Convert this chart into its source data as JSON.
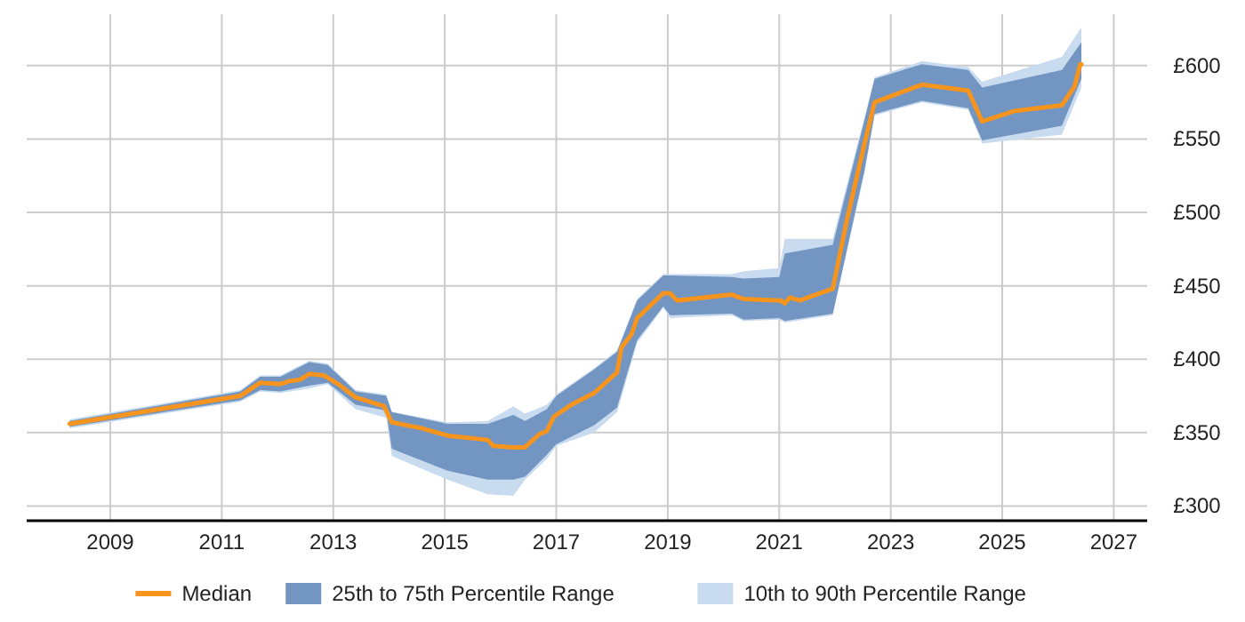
{
  "chart_data": {
    "type": "line",
    "xlim": [
      2007.5,
      2027.6
    ],
    "ylim": [
      290,
      635
    ],
    "xticks": [
      2009,
      2011,
      2013,
      2015,
      2017,
      2019,
      2021,
      2023,
      2025,
      2027
    ],
    "yticks": [
      {
        "value": 300,
        "label": "£300"
      },
      {
        "value": 350,
        "label": "£350"
      },
      {
        "value": 400,
        "label": "£400"
      },
      {
        "value": 450,
        "label": "£450"
      },
      {
        "value": 500,
        "label": "£500"
      },
      {
        "value": 550,
        "label": "£550"
      },
      {
        "value": 600,
        "label": "£600"
      }
    ],
    "grid": true,
    "legend": "bottom",
    "series": [
      {
        "name": "10th to 90th Percentile Range",
        "type": "area",
        "color": "#c9dbee",
        "x": [
          2008.27,
          2011.33,
          2011.69,
          2012.05,
          2012.57,
          2012.9,
          2013.4,
          2013.95,
          2014.05,
          2015.05,
          2015.77,
          2016.23,
          2016.44,
          2016.83,
          2017.0,
          2017.68,
          2018.09,
          2018.45,
          2018.92,
          2019.04,
          2020.15,
          2020.36,
          2021.0,
          2021.1,
          2021.96,
          2022.53,
          2022.71,
          2023.56,
          2024.39,
          2024.64,
          2026.07,
          2026.42
        ],
        "values": [
          null,
          null,
          null,
          null,
          null,
          null,
          null,
          null,
          null,
          null,
          null,
          null,
          null,
          null,
          null,
          null,
          null,
          null,
          null,
          null,
          null,
          null,
          null,
          null,
          null,
          null,
          null,
          null,
          null,
          null,
          null,
          null
        ],
        "lower": [
          353,
          371,
          378,
          377,
          380,
          383,
          366,
          360,
          334,
          318,
          308,
          307,
          318,
          332,
          341,
          350,
          364,
          411,
          435,
          428,
          430,
          426,
          427,
          425,
          430,
          527,
          566,
          575,
          570,
          547,
          553,
          585
        ],
        "upper": [
          359,
          379,
          389,
          389,
          399,
          397,
          379,
          376,
          364,
          357,
          358,
          368,
          363,
          369,
          376,
          394,
          406,
          441,
          458,
          458,
          458,
          460,
          462,
          482,
          482,
          565,
          592,
          603,
          599,
          589,
          606,
          626
        ]
      },
      {
        "name": "25th to 75th Percentile Range",
        "type": "area",
        "color": "#7395c2",
        "x": [
          2008.27,
          2011.33,
          2011.69,
          2012.05,
          2012.57,
          2012.9,
          2013.4,
          2013.95,
          2014.05,
          2015.05,
          2015.77,
          2016.23,
          2016.44,
          2016.83,
          2017.0,
          2017.68,
          2018.09,
          2018.45,
          2018.92,
          2019.04,
          2020.15,
          2020.36,
          2021.0,
          2021.1,
          2021.96,
          2022.53,
          2022.71,
          2023.56,
          2024.39,
          2024.64,
          2026.07,
          2026.42
        ],
        "values": [
          null,
          null,
          null,
          null,
          null,
          null,
          null,
          null,
          null,
          null,
          null,
          null,
          null,
          null,
          null,
          null,
          null,
          null,
          null,
          null,
          null,
          null,
          null,
          null,
          null,
          null,
          null,
          null,
          null,
          null,
          null,
          null
        ],
        "lower": [
          354,
          372,
          379,
          378,
          382,
          384,
          369,
          365,
          339,
          324,
          318,
          318,
          320,
          335,
          342,
          355,
          367,
          413,
          436,
          430,
          431,
          427,
          428,
          426,
          431,
          529,
          567,
          576,
          571,
          549,
          559,
          591
        ],
        "upper": [
          358,
          378,
          388,
          388,
          398,
          396,
          378,
          375,
          364,
          356,
          356,
          362,
          358,
          366,
          375,
          393,
          405,
          440,
          457,
          457,
          456,
          455,
          456,
          472,
          478,
          563,
          591,
          601,
          597,
          585,
          597,
          616
        ]
      },
      {
        "name": "Median",
        "color": "#f7941d",
        "x": [
          2008.27,
          2011.33,
          2011.69,
          2012.05,
          2012.2,
          2012.4,
          2012.57,
          2012.83,
          2013.09,
          2013.4,
          2013.91,
          2014.05,
          2014.58,
          2015.05,
          2015.77,
          2015.87,
          2016.23,
          2016.44,
          2016.7,
          2016.83,
          2016.96,
          2017.27,
          2017.68,
          2018.09,
          2018.17,
          2018.35,
          2018.45,
          2018.92,
          2019.04,
          2019.17,
          2020.15,
          2020.36,
          2021.03,
          2021.1,
          2021.19,
          2021.37,
          2021.96,
          2022.22,
          2022.53,
          2022.71,
          2023.2,
          2023.56,
          2024.39,
          2024.64,
          2025.21,
          2026.07,
          2026.3,
          2026.4,
          2026.42
        ],
        "values": [
          356,
          375,
          384,
          383,
          385,
          386,
          390,
          389,
          383,
          374,
          368,
          357,
          353,
          348,
          345,
          341,
          340,
          340,
          349,
          351,
          361,
          369,
          377,
          391,
          408,
          417,
          428,
          445,
          445,
          440,
          444,
          441,
          440,
          438,
          442,
          440,
          448,
          496,
          547,
          575,
          582,
          587,
          583,
          562,
          569,
          573,
          586,
          601,
          601
        ]
      }
    ]
  }
}
